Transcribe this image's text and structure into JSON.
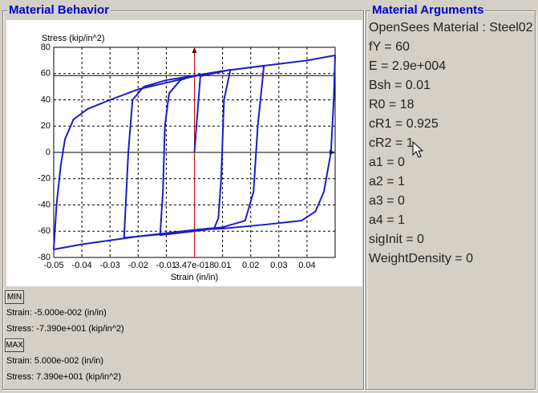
{
  "left_panel": {
    "title": "Material Behavior",
    "min_button": "MIN",
    "min_strain": "Strain: -5.000e-002 (in/in)",
    "min_stress": "Stress: -7.390e+001 (kip/in^2)",
    "max_button": "MAX",
    "max_strain": "Strain: 5.000e-002 (in/in)",
    "max_stress": "Stress: 7.390e+001 (kip/in^2)"
  },
  "right_panel": {
    "title": "Material Arguments",
    "lines": [
      "OpenSees Material : Steel02",
      "fY = 60",
      "E = 2.9e+004",
      "Bsh = 0.01",
      "R0 = 18",
      "cR1 = 0.925",
      "cR2 = 1",
      "a1 = 0",
      "a2 = 1",
      "a3 = 0",
      "a4 = 1",
      "sigInit = 0",
      "WeightDensity = 0"
    ]
  },
  "chart_data": {
    "type": "line",
    "x_label": "Strain (in/in)",
    "y_label": "Stress (kip/in^2)",
    "xlim": [
      -0.05,
      0.05
    ],
    "xticks": [
      -0.05,
      -0.04,
      -0.03,
      -0.02,
      -0.01,
      {
        "value": 3.47e-18,
        "label": "3.47e-018"
      },
      0.01,
      0.02,
      0.03,
      0.04
    ],
    "ylim": [
      -80,
      80
    ],
    "yticks": [
      80,
      60,
      40,
      20,
      0,
      -20,
      -40,
      -60,
      -80
    ],
    "grid": true,
    "series": [
      {
        "color": "#1c1cc8",
        "x": [
          0,
          0.0021,
          0.0128,
          0.0105,
          0.0095,
          0.0085,
          0.007,
          0,
          -0.0122,
          -0.0112,
          -0.0105,
          -0.009,
          -0.005,
          0,
          0.01,
          0.0247,
          0.0225,
          0.021,
          0.018,
          0.01,
          0,
          -0.01,
          -0.025,
          -0.0235,
          -0.022,
          -0.018,
          -0.01,
          0,
          0.01,
          0.025,
          0.04,
          0.05,
          0.0495,
          0.0485,
          0.046,
          0.043,
          0.038,
          0.025,
          0.01,
          0,
          -0.02,
          -0.04,
          -0.05,
          -0.049,
          -0.0475,
          -0.046,
          -0.043,
          -0.038,
          -0.03,
          -0.02,
          -0.01,
          0,
          0.01,
          0.025,
          0.04,
          0.05
        ],
        "values": [
          0,
          58,
          63,
          40,
          -20,
          -50,
          -58,
          -60,
          -63,
          -30,
          20,
          45,
          55,
          58.5,
          62,
          66,
          20,
          -30,
          -52,
          -57,
          -59,
          -62,
          -65,
          0,
          40,
          50,
          55,
          58.5,
          62,
          66,
          70,
          73.9,
          40,
          0,
          -30,
          -45,
          -52,
          -55,
          -58,
          -59,
          -64,
          -70,
          -73.9,
          -40,
          -10,
          10,
          25,
          33,
          40,
          48,
          53,
          58,
          62,
          66,
          70,
          73.9
        ]
      }
    ]
  }
}
